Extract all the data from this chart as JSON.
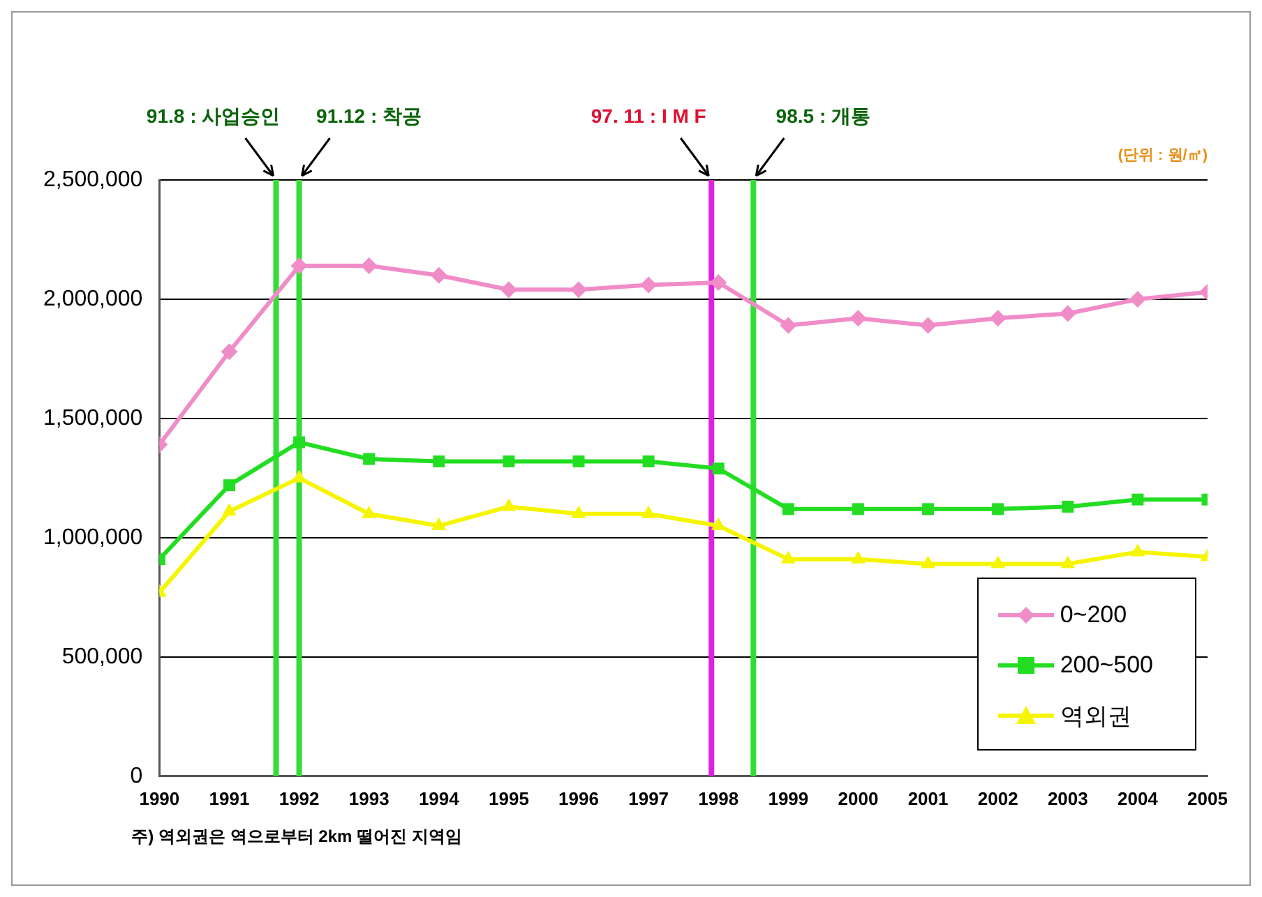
{
  "chart_data": {
    "type": "line",
    "x": [
      1990,
      1991,
      1992,
      1993,
      1994,
      1995,
      1996,
      1997,
      1998,
      1999,
      2000,
      2001,
      2002,
      2003,
      2004,
      2005
    ],
    "series": [
      {
        "name": "0~200",
        "color": "#f08cc8",
        "marker": "diamond",
        "values": [
          1390000,
          1780000,
          2140000,
          2140000,
          2100000,
          2040000,
          2040000,
          2060000,
          2070000,
          1890000,
          1920000,
          1890000,
          1920000,
          1940000,
          2000000,
          2030000
        ]
      },
      {
        "name": "200~500",
        "color": "#22dd22",
        "marker": "square",
        "values": [
          910000,
          1220000,
          1400000,
          1330000,
          1320000,
          1320000,
          1320000,
          1320000,
          1290000,
          1120000,
          1120000,
          1120000,
          1120000,
          1130000,
          1160000,
          1160000
        ]
      },
      {
        "name": "역외권",
        "color": "#f5f500",
        "marker": "triangle",
        "values": [
          770000,
          1110000,
          1250000,
          1100000,
          1050000,
          1130000,
          1100000,
          1100000,
          1050000,
          910000,
          910000,
          890000,
          890000,
          890000,
          940000,
          920000
        ]
      }
    ],
    "xlim": [
      1990,
      2005
    ],
    "xticks": [
      1990,
      1991,
      1992,
      1993,
      1994,
      1995,
      1996,
      1997,
      1998,
      1999,
      2000,
      2001,
      2002,
      2003,
      2004,
      2005
    ],
    "ylim": [
      0,
      2500000
    ],
    "yticks": [
      {
        "value": 0,
        "label": "0"
      },
      {
        "value": 500000,
        "label": "500,000"
      },
      {
        "value": 1000000,
        "label": "1,000,000"
      },
      {
        "value": 1500000,
        "label": "1,500,000"
      },
      {
        "value": 2000000,
        "label": "2,000,000"
      },
      {
        "value": 2500000,
        "label": "2,500,000"
      }
    ],
    "grid": "y",
    "legend": "bottom right",
    "ref_lines": [
      {
        "axis": "x",
        "value": 1991.67,
        "label": "91.8 : 사업승인",
        "color": "#33dd33"
      },
      {
        "axis": "x",
        "value": 1992.0,
        "label": "91.12 : 착공",
        "color": "#33dd33"
      },
      {
        "axis": "x",
        "value": 1997.9,
        "label": "97. 11 : I M F",
        "color": "#dd22dd"
      },
      {
        "axis": "x",
        "value": 1998.5,
        "label": "98.5 : 개통",
        "color": "#33dd33"
      }
    ],
    "annotations": [
      "(단위 : 원/㎡)",
      "주) 역외권은 역으로부터 2km 떨어진 지역임"
    ]
  }
}
